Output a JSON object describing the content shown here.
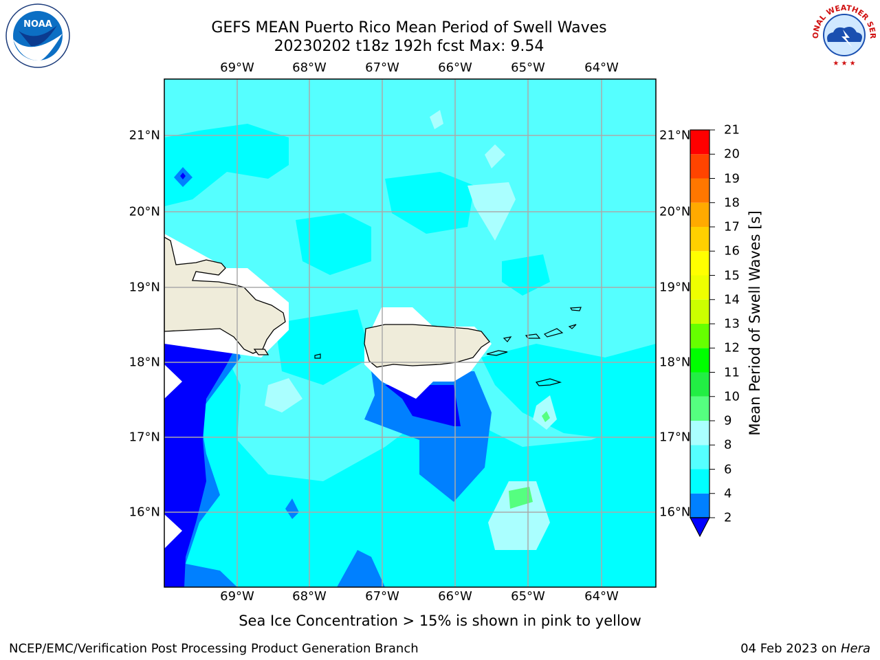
{
  "title_line1": "GEFS MEAN Puerto Rico Mean Period of Swell Waves",
  "title_line2": "20230202 t18z 192h fcst   Max: 9.54",
  "lon_labels": [
    "69°W",
    "68°W",
    "67°W",
    "66°W",
    "65°W",
    "64°W"
  ],
  "lat_labels": [
    "21°N",
    "20°N",
    "19°N",
    "18°N",
    "17°N",
    "16°N"
  ],
  "colorbar": {
    "label": "Mean Period of Swell Waves [s]",
    "ticks": [
      "2",
      "4",
      "6",
      "8",
      "9",
      "10",
      "11",
      "12",
      "13",
      "14",
      "15",
      "16",
      "17",
      "18",
      "19",
      "20",
      "21"
    ],
    "colors": [
      "#0000ff",
      "#0080ff",
      "#00ffff",
      "#55ffff",
      "#aaffff",
      "#55ff80",
      "#22ee44",
      "#00ff00",
      "#66ff00",
      "#ccff00",
      "#eeff00",
      "#ffff00",
      "#ffd000",
      "#ffaa00",
      "#ff7700",
      "#ff4400",
      "#ff0000"
    ]
  },
  "note": "Sea Ice Concentration > 15% is shown in pink to yellow",
  "footer_left": "NCEP/EMC/Verification Post Processing Product Generation Branch",
  "footer_date": "04 Feb 2023 on ",
  "footer_machine": "Hera",
  "logos": {
    "left_icon": "noaa-logo",
    "left_text": "NOAA",
    "right_icon": "nws-logo",
    "right_text": "NATIONAL WEATHER SERVICE"
  }
}
